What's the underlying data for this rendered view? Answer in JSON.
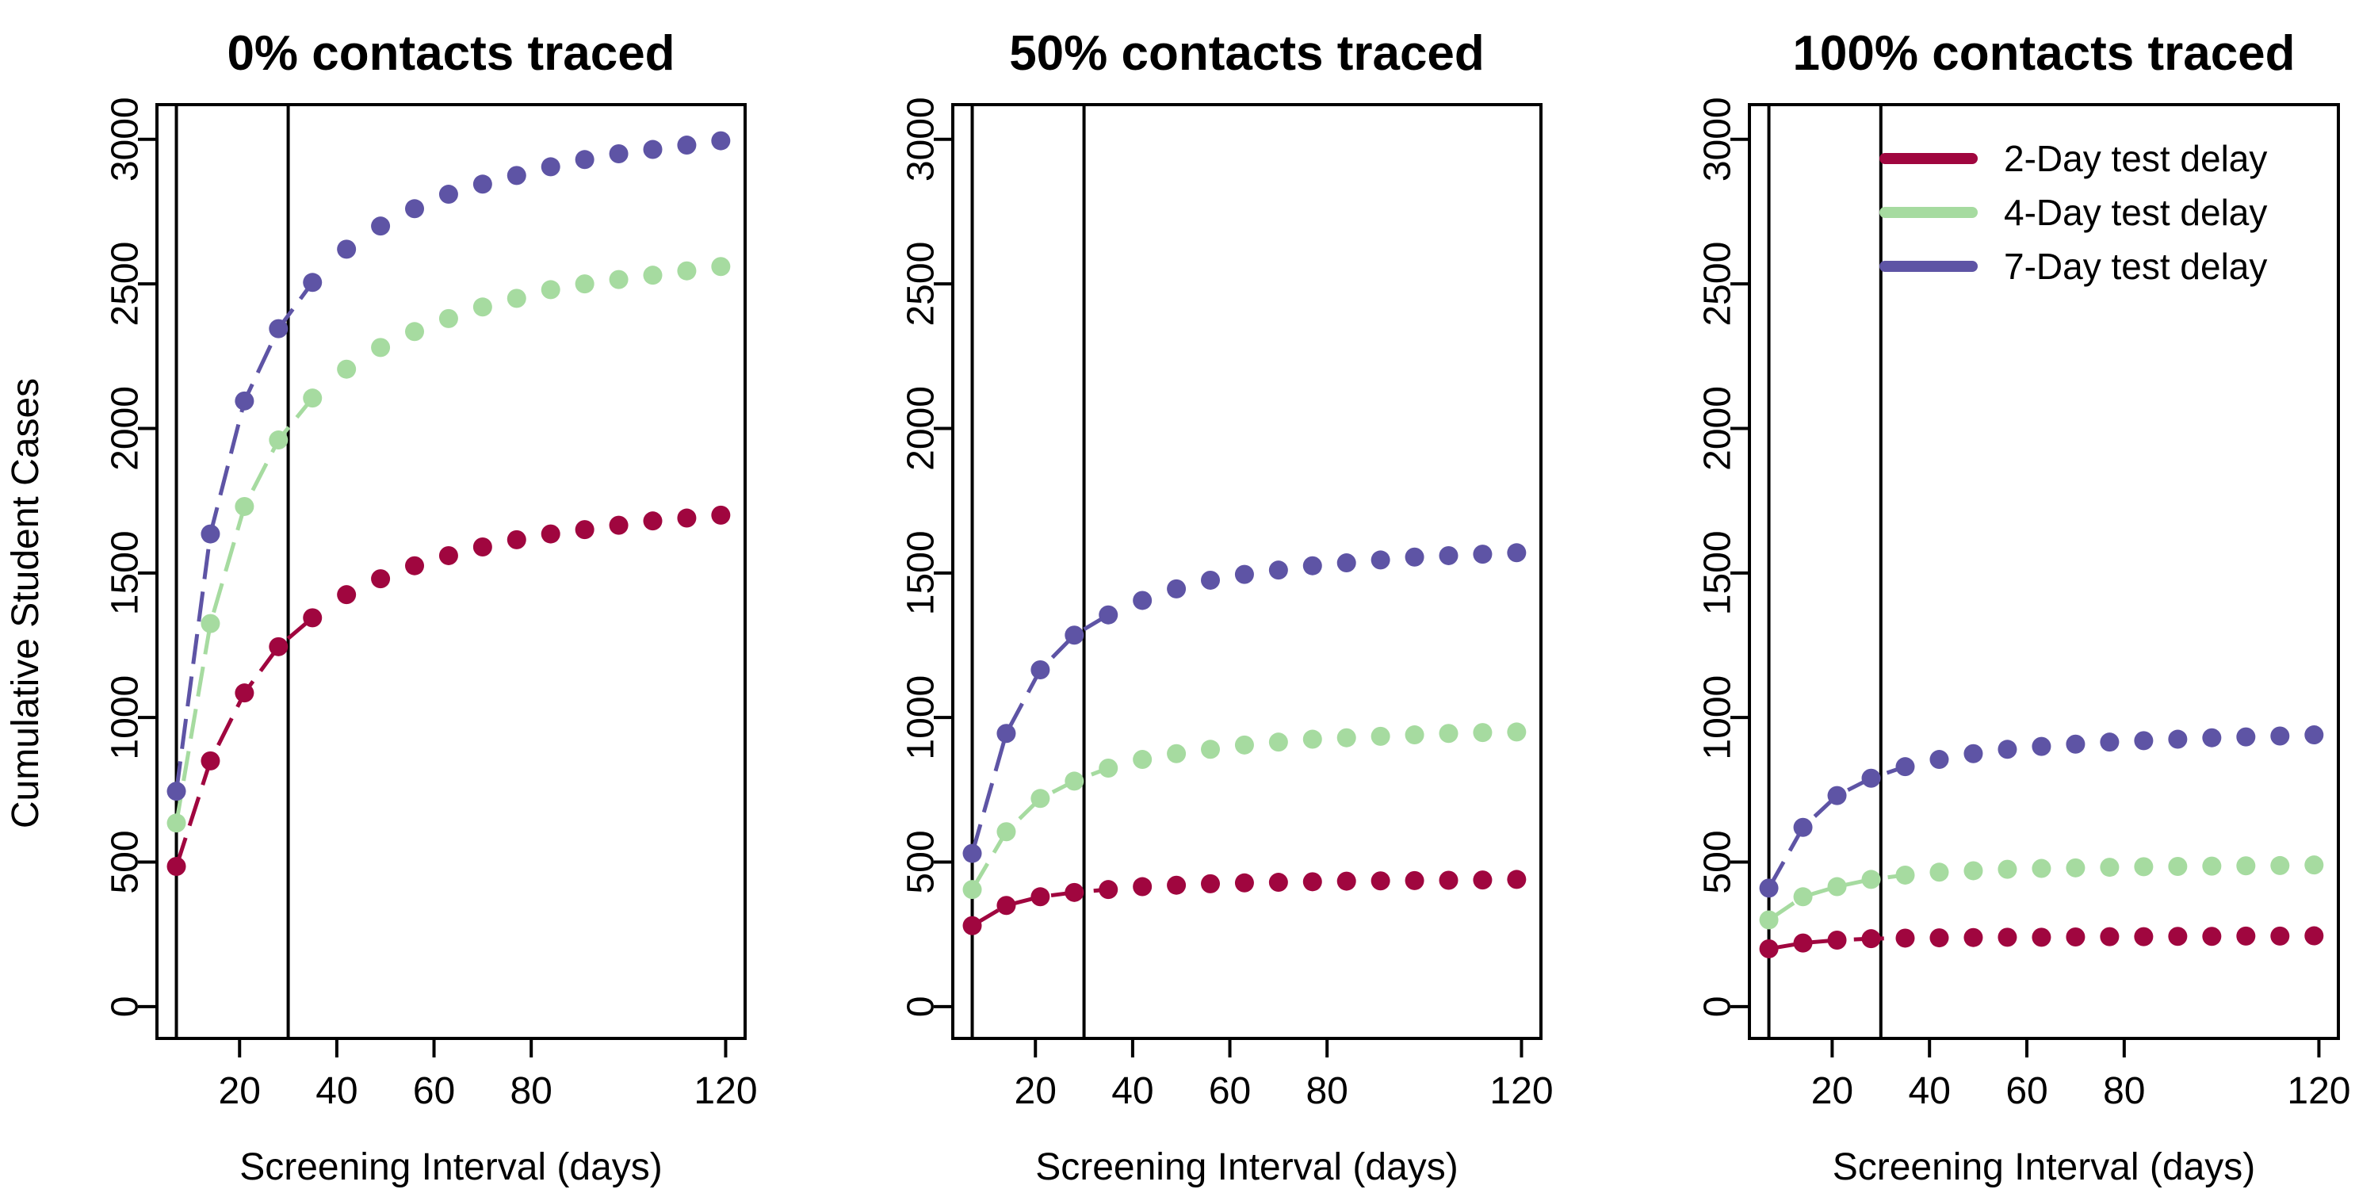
{
  "chart_data": {
    "type": "scatter",
    "x_ticks": [
      20,
      40,
      60,
      80,
      120
    ],
    "y_ticks": [
      0,
      500,
      1000,
      1500,
      2000,
      2500,
      3000
    ],
    "xlim": [
      3,
      124
    ],
    "ylim": [
      -110,
      3120
    ],
    "xlabel": "Screening Interval (days)",
    "ylabel": "Cumulative Student Cases",
    "reference_lines_x": [
      7,
      30
    ],
    "x": [
      7,
      14,
      21,
      28,
      35,
      42,
      49,
      56,
      63,
      70,
      77,
      84,
      91,
      98,
      105,
      112,
      119
    ],
    "legend": {
      "position": "top-right",
      "panel": 3,
      "entries": [
        "2-Day test delay",
        "4-Day test delay",
        "7-Day test delay"
      ]
    },
    "colors": {
      "2-Day test delay": "#a0063f",
      "4-Day test delay": "#a6dba0",
      "7-Day test delay": "#5e54a5"
    },
    "panels": [
      {
        "title": "0% contacts traced",
        "series": [
          {
            "name": "2-Day test delay",
            "values": [
              485,
              850,
              1085,
              1245,
              1345,
              1425,
              1480,
              1525,
              1560,
              1590,
              1615,
              1635,
              1650,
              1665,
              1680,
              1690,
              1700
            ]
          },
          {
            "name": "4-Day test delay",
            "values": [
              635,
              1325,
              1730,
              1960,
              2105,
              2205,
              2280,
              2335,
              2380,
              2420,
              2450,
              2480,
              2500,
              2515,
              2530,
              2545,
              2560
            ]
          },
          {
            "name": "7-Day test delay",
            "values": [
              745,
              1635,
              2095,
              2345,
              2505,
              2620,
              2700,
              2760,
              2810,
              2845,
              2875,
              2905,
              2930,
              2950,
              2965,
              2980,
              2995
            ]
          }
        ]
      },
      {
        "title": "50% contacts traced",
        "series": [
          {
            "name": "2-Day test delay",
            "values": [
              280,
              350,
              380,
              395,
              405,
              415,
              420,
              425,
              428,
              430,
              432,
              434,
              435,
              436,
              437,
              438,
              440
            ]
          },
          {
            "name": "4-Day test delay",
            "values": [
              405,
              605,
              720,
              780,
              825,
              855,
              875,
              890,
              905,
              915,
              925,
              930,
              935,
              940,
              945,
              948,
              950
            ]
          },
          {
            "name": "7-Day test delay",
            "values": [
              530,
              945,
              1165,
              1285,
              1355,
              1405,
              1445,
              1475,
              1495,
              1510,
              1525,
              1535,
              1545,
              1555,
              1560,
              1565,
              1570
            ]
          }
        ]
      },
      {
        "title": "100% contacts traced",
        "series": [
          {
            "name": "2-Day test delay",
            "values": [
              200,
              220,
              230,
              235,
              237,
              238,
              239,
              240,
              240,
              241,
              242,
              242,
              243,
              243,
              244,
              244,
              245
            ]
          },
          {
            "name": "4-Day test delay",
            "values": [
              300,
              380,
              415,
              440,
              455,
              465,
              470,
              475,
              478,
              480,
              482,
              484,
              485,
              486,
              487,
              488,
              490
            ]
          },
          {
            "name": "7-Day test delay",
            "values": [
              410,
              620,
              730,
              790,
              830,
              855,
              875,
              890,
              900,
              908,
              915,
              920,
              925,
              930,
              933,
              936,
              940
            ]
          }
        ]
      }
    ]
  }
}
